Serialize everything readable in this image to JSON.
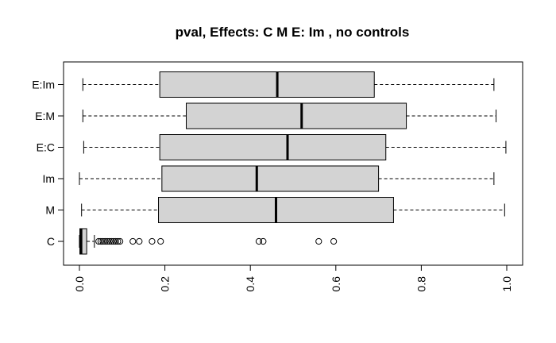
{
  "chart_data": {
    "type": "boxplot",
    "orientation": "horizontal",
    "title": "pval, Effects: C M  E: Im , no controls",
    "xlim": [
      0,
      1
    ],
    "x_ticks": [
      0,
      0.2,
      0.4,
      0.6,
      0.8,
      1
    ],
    "x_tick_labels": [
      "0.0",
      "0.2",
      "0.4",
      "0.6",
      "0.8",
      "1.0"
    ],
    "colors": {
      "box_fill": "#d3d3d3",
      "stroke": "#000000"
    },
    "categories": [
      "C",
      "M",
      "Im",
      "E:C",
      "E:M",
      "E:Im"
    ],
    "boxes": [
      {
        "name": "C",
        "whisker_low": 0.0,
        "q1": 0.001,
        "median": 0.004,
        "q3": 0.017,
        "whisker_high": 0.035,
        "outliers": [
          0.045,
          0.05,
          0.055,
          0.06,
          0.065,
          0.07,
          0.075,
          0.08,
          0.085,
          0.09,
          0.095,
          0.125,
          0.14,
          0.17,
          0.19,
          0.42,
          0.43,
          0.56,
          0.595
        ]
      },
      {
        "name": "M",
        "whisker_low": 0.005,
        "q1": 0.185,
        "median": 0.46,
        "q3": 0.735,
        "whisker_high": 0.995,
        "outliers": []
      },
      {
        "name": "Im",
        "whisker_low": 0.0,
        "q1": 0.193,
        "median": 0.415,
        "q3": 0.7,
        "whisker_high": 0.97,
        "outliers": []
      },
      {
        "name": "E:C",
        "whisker_low": 0.01,
        "q1": 0.188,
        "median": 0.487,
        "q3": 0.717,
        "whisker_high": 0.998,
        "outliers": []
      },
      {
        "name": "E:M",
        "whisker_low": 0.008,
        "q1": 0.25,
        "median": 0.52,
        "q3": 0.765,
        "whisker_high": 0.975,
        "outliers": []
      },
      {
        "name": "E:Im",
        "whisker_low": 0.008,
        "q1": 0.188,
        "median": 0.463,
        "q3": 0.69,
        "whisker_high": 0.97,
        "outliers": []
      }
    ]
  }
}
